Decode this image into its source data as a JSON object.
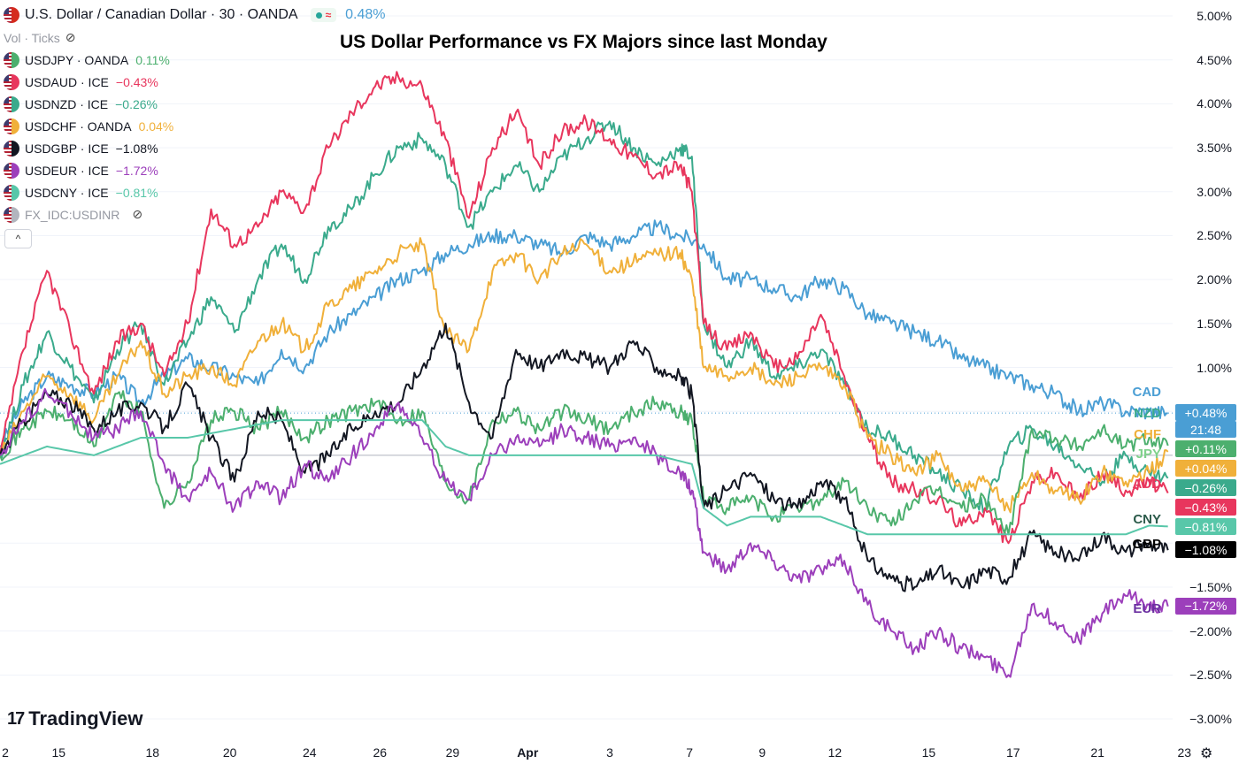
{
  "legend": {
    "main": {
      "title": "U.S. Dollar / Canadian Dollar · 30 · OANDA",
      "change": "0.48%",
      "approx": "≈",
      "color": "#4a9ed4"
    },
    "vol": "Vol · Ticks",
    "rows": [
      {
        "symbol": "USDJPY · OANDA",
        "value": "0.11%",
        "color": "#4caf6e"
      },
      {
        "symbol": "USDAUD · ICE",
        "value": "−0.43%",
        "color": "#e8365d"
      },
      {
        "symbol": "USDNZD · ICE",
        "value": "−0.26%",
        "color": "#3aaa8c"
      },
      {
        "symbol": "USDCHF · OANDA",
        "value": "0.04%",
        "color": "#f0b03a"
      },
      {
        "symbol": "USDGBP · ICE",
        "value": "−1.08%",
        "color": "#131722"
      },
      {
        "symbol": "USDEUR · ICE",
        "value": "−1.72%",
        "color": "#9c3fbb"
      },
      {
        "symbol": "USDCNY · ICE",
        "value": "−0.81%",
        "color": "#58c7a9"
      },
      {
        "symbol": "FX_IDC:USDINR",
        "value": "",
        "color": "#b2b5be"
      }
    ],
    "collapse": "^"
  },
  "brand": {
    "logo_mark": "17",
    "name": "TradingView"
  },
  "badges": [
    {
      "text": "+0.48%",
      "sub": "21:48",
      "color": "#4a9ed4",
      "pct": 0.48
    },
    {
      "text": "+0.11%",
      "color": "#4caf6e",
      "pct": 0.11
    },
    {
      "text": "+0.04%",
      "color": "#f0b03a",
      "pct": 0.04
    },
    {
      "text": "−0.26%",
      "color": "#3aaa8c",
      "pct": -0.26
    },
    {
      "text": "−0.43%",
      "color": "#e8365d",
      "pct": -0.43
    },
    {
      "text": "−0.81%",
      "color": "#58c7a9",
      "pct": -0.81
    },
    {
      "text": "−1.08%",
      "color": "#000000",
      "pct": -1.08
    },
    {
      "text": "−1.72%",
      "color": "#9c3fbb",
      "pct": -1.72
    }
  ],
  "end_labels": [
    {
      "text": "CAD",
      "color": "#4a9ed4",
      "pct": 0.62
    },
    {
      "text": "NZD",
      "color": "#3aaa8c",
      "pct": 0.38
    },
    {
      "text": "CHF",
      "color": "#f0b03a",
      "pct": 0.14
    },
    {
      "text": "JPY",
      "color": "#7fd18b",
      "pct": -0.07
    },
    {
      "text": "AUD",
      "color": "#e8365d",
      "pct": -0.42
    },
    {
      "text": "CNY",
      "color": "#2b5a4a",
      "pct": -0.83
    },
    {
      "text": "GBP",
      "color": "#000000",
      "pct": -1.11
    },
    {
      "text": "EUR",
      "color": "#6a2fa0",
      "pct": -1.75
    }
  ],
  "chart_data": {
    "type": "line",
    "title": "US Dollar Performance vs FX Majors since last Monday",
    "ylim": [
      -3.0,
      5.0
    ],
    "yticks": [
      5.0,
      4.5,
      4.0,
      3.5,
      3.0,
      2.5,
      2.0,
      1.5,
      1.0,
      -1.5,
      -2.0,
      -2.5,
      -3.0
    ],
    "ytick_labels": [
      "5.00%",
      "4.50%",
      "4.00%",
      "3.50%",
      "3.00%",
      "2.50%",
      "2.00%",
      "1.50%",
      "1.00%",
      "−1.50%",
      "−2.00%",
      "−2.50%",
      "−3.00%"
    ],
    "xlim": [
      0,
      50
    ],
    "xticks": [
      0,
      2.5,
      6.5,
      9.8,
      13.2,
      16.2,
      19.3,
      22.5,
      26,
      29.4,
      32.5,
      35.6,
      39.6,
      43.2,
      46.8,
      50.5
    ],
    "xtick_labels": [
      "2",
      "15",
      "18",
      "20",
      "24",
      "26",
      "29",
      "Apr",
      "3",
      "7",
      "9",
      "12",
      "15",
      "17",
      "21",
      "23"
    ],
    "reference_lines": [
      {
        "value": 0,
        "style": "solid"
      },
      {
        "value": 0.48,
        "style": "dotted",
        "color": "#4a9ed4"
      }
    ],
    "series": [
      {
        "name": "USDCAD",
        "color": "#4a9ed4",
        "x": [
          0,
          1,
          2,
          3,
          4,
          5,
          6,
          7,
          8,
          9,
          10,
          11,
          12,
          13,
          14,
          15,
          16,
          17,
          18,
          19,
          20,
          21,
          22,
          23,
          24,
          25,
          26,
          27,
          28,
          29,
          30,
          31,
          32,
          33,
          34,
          35,
          36,
          37,
          38,
          39,
          40,
          41,
          42,
          43,
          44,
          45,
          46,
          47,
          48,
          49,
          49.8
        ],
        "y": [
          0.1,
          0.6,
          0.9,
          0.8,
          0.7,
          0.9,
          0.6,
          0.9,
          1.1,
          1.0,
          0.9,
          0.8,
          1.2,
          1.0,
          1.4,
          1.6,
          1.8,
          2.0,
          2.1,
          2.3,
          2.4,
          2.5,
          2.5,
          2.4,
          2.3,
          2.5,
          2.4,
          2.5,
          2.6,
          2.5,
          2.4,
          2.0,
          2.0,
          1.9,
          1.8,
          2.0,
          1.9,
          1.6,
          1.5,
          1.4,
          1.3,
          1.1,
          1.0,
          0.9,
          0.8,
          0.7,
          0.5,
          0.6,
          0.5,
          0.5,
          0.48
        ]
      },
      {
        "name": "USDNZD",
        "color": "#3aaa8c",
        "x": [
          0,
          1,
          2,
          3,
          4,
          5,
          6,
          7,
          8,
          9,
          10,
          11,
          12,
          13,
          14,
          15,
          16,
          17,
          18,
          19,
          20,
          21,
          22,
          23,
          24,
          25,
          26,
          27,
          28,
          29,
          29.5,
          30,
          31,
          32,
          33,
          34,
          35,
          36,
          37,
          38,
          39,
          40,
          41,
          42,
          43,
          44,
          45,
          46,
          47,
          48,
          49,
          49.8
        ],
        "y": [
          0.0,
          0.8,
          1.4,
          1.0,
          0.6,
          1.2,
          1.5,
          0.8,
          1.3,
          1.8,
          1.4,
          2.0,
          2.4,
          2.0,
          2.6,
          2.8,
          3.2,
          3.5,
          3.6,
          3.3,
          2.6,
          3.0,
          3.3,
          3.0,
          3.4,
          3.6,
          3.8,
          3.5,
          3.3,
          3.5,
          3.4,
          1.5,
          1.0,
          1.3,
          0.9,
          1.0,
          1.2,
          0.8,
          0.3,
          0.2,
          0.0,
          -0.2,
          -0.4,
          -0.6,
          0.1,
          0.3,
          0.1,
          -0.1,
          -0.3,
          0.0,
          -0.2,
          -0.26
        ]
      },
      {
        "name": "USDAUD",
        "color": "#e8365d",
        "x": [
          0,
          1,
          2,
          3,
          4,
          5,
          6,
          7,
          8,
          9,
          10,
          11,
          12,
          13,
          14,
          15,
          16,
          17,
          18,
          19,
          20,
          21,
          22,
          23,
          24,
          25,
          26,
          27,
          28,
          29,
          29.5,
          30,
          31,
          32,
          33,
          34,
          35,
          36,
          37,
          38,
          39,
          40,
          41,
          42,
          43,
          44,
          45,
          46,
          47,
          48,
          49,
          49.8
        ],
        "y": [
          0.0,
          1.2,
          2.1,
          1.4,
          0.7,
          1.3,
          1.5,
          0.9,
          1.5,
          2.8,
          2.4,
          2.6,
          3.0,
          2.8,
          3.5,
          3.9,
          4.2,
          4.3,
          4.2,
          3.6,
          2.7,
          3.5,
          3.9,
          3.3,
          3.7,
          3.8,
          3.6,
          3.4,
          3.2,
          3.3,
          3.0,
          1.5,
          1.2,
          1.4,
          1.0,
          1.1,
          1.6,
          0.9,
          0.2,
          -0.3,
          -0.4,
          -0.5,
          -0.8,
          -0.6,
          -1.0,
          -0.3,
          -0.2,
          -0.5,
          -0.2,
          -0.4,
          -0.3,
          -0.43
        ]
      },
      {
        "name": "USDCHF",
        "color": "#f0b03a",
        "x": [
          0,
          1,
          2,
          3,
          4,
          5,
          6,
          7,
          8,
          9,
          10,
          11,
          12,
          13,
          14,
          15,
          16,
          17,
          18,
          19,
          20,
          21,
          22,
          23,
          24,
          25,
          26,
          27,
          28,
          29,
          29.5,
          30,
          31,
          32,
          33,
          34,
          35,
          36,
          37,
          38,
          39,
          40,
          41,
          42,
          43,
          44,
          45,
          46,
          47,
          48,
          49,
          49.8
        ],
        "y": [
          0.0,
          0.5,
          0.9,
          0.7,
          0.4,
          0.9,
          1.3,
          0.7,
          0.9,
          1.0,
          0.8,
          1.3,
          1.5,
          1.2,
          1.7,
          1.9,
          2.1,
          2.3,
          2.4,
          1.4,
          1.2,
          2.1,
          2.3,
          2.0,
          2.3,
          2.4,
          2.1,
          2.2,
          2.3,
          2.3,
          2.0,
          1.0,
          0.9,
          1.0,
          0.8,
          0.9,
          1.0,
          0.8,
          0.2,
          0.0,
          -0.2,
          0.0,
          -0.4,
          -0.3,
          -0.6,
          -0.2,
          -0.4,
          -0.5,
          -0.2,
          -0.3,
          -0.2,
          0.04
        ]
      },
      {
        "name": "USDJPY",
        "color": "#4caf6e",
        "x": [
          0,
          1,
          2,
          3,
          4,
          5,
          6,
          7,
          8,
          9,
          10,
          11,
          12,
          13,
          14,
          15,
          16,
          17,
          18,
          19,
          20,
          21,
          22,
          23,
          24,
          25,
          26,
          27,
          28,
          29,
          29.5,
          30,
          31,
          32,
          33,
          34,
          35,
          36,
          37,
          38,
          39,
          40,
          41,
          42,
          43,
          44,
          45,
          46,
          47,
          48,
          49,
          49.8
        ],
        "y": [
          0.0,
          0.3,
          0.5,
          0.4,
          0.1,
          0.7,
          0.5,
          -0.6,
          -0.3,
          0.4,
          0.5,
          0.3,
          0.5,
          0.2,
          0.4,
          0.5,
          0.6,
          0.4,
          0.5,
          -0.3,
          -0.5,
          0.4,
          0.5,
          0.3,
          0.5,
          0.4,
          0.3,
          0.5,
          0.6,
          0.5,
          0.4,
          -0.5,
          -0.6,
          -0.5,
          -0.7,
          -0.6,
          -0.5,
          -0.3,
          -0.6,
          -0.8,
          -0.5,
          -0.4,
          -0.6,
          -0.5,
          -0.9,
          0.3,
          0.2,
          0.1,
          0.3,
          0.1,
          0.2,
          0.11
        ]
      },
      {
        "name": "USDGBP",
        "color": "#131722",
        "x": [
          0,
          1,
          2,
          3,
          4,
          5,
          6,
          7,
          8,
          9,
          10,
          11,
          12,
          13,
          14,
          15,
          16,
          17,
          18,
          19,
          20,
          21,
          22,
          23,
          24,
          25,
          26,
          27,
          28,
          29,
          29.5,
          30,
          31,
          32,
          33,
          34,
          35,
          36,
          37,
          38,
          39,
          40,
          41,
          42,
          43,
          44,
          45,
          46,
          47,
          48,
          49,
          49.8
        ],
        "y": [
          0.0,
          0.4,
          0.7,
          0.6,
          0.3,
          0.5,
          0.6,
          0.3,
          0.8,
          0.2,
          -0.3,
          0.5,
          0.4,
          -0.2,
          0.0,
          0.3,
          0.5,
          0.6,
          1.0,
          1.5,
          0.6,
          0.2,
          1.2,
          1.0,
          1.2,
          1.1,
          1.0,
          1.3,
          1.0,
          0.9,
          0.7,
          -0.6,
          -0.4,
          -0.2,
          -0.5,
          -0.6,
          -0.3,
          -0.5,
          -1.2,
          -1.4,
          -1.5,
          -1.3,
          -1.5,
          -1.3,
          -1.4,
          -0.9,
          -1.1,
          -1.2,
          -0.9,
          -1.1,
          -1.0,
          -1.08
        ]
      },
      {
        "name": "USDEUR",
        "color": "#9c3fbb",
        "x": [
          0,
          1,
          2,
          3,
          4,
          5,
          6,
          7,
          8,
          9,
          10,
          11,
          12,
          13,
          14,
          15,
          16,
          17,
          18,
          19,
          20,
          21,
          22,
          23,
          24,
          25,
          26,
          27,
          28,
          29,
          29.5,
          30,
          31,
          32,
          33,
          34,
          35,
          36,
          37,
          38,
          39,
          40,
          41,
          42,
          43,
          44,
          45,
          46,
          47,
          48,
          49,
          49.8
        ],
        "y": [
          0.0,
          0.4,
          0.7,
          0.5,
          0.2,
          0.3,
          0.5,
          -0.1,
          -0.5,
          -0.2,
          -0.6,
          -0.3,
          -0.5,
          -0.1,
          -0.3,
          0.0,
          0.3,
          0.6,
          0.2,
          -0.3,
          -0.5,
          0.0,
          0.2,
          0.1,
          0.3,
          0.2,
          0.1,
          0.2,
          0.0,
          -0.2,
          -0.4,
          -1.1,
          -1.3,
          -1.0,
          -1.2,
          -1.4,
          -1.3,
          -1.2,
          -1.7,
          -2.0,
          -2.2,
          -2.0,
          -2.2,
          -2.3,
          -2.5,
          -1.7,
          -1.9,
          -2.1,
          -1.8,
          -1.6,
          -1.7,
          -1.72
        ]
      },
      {
        "name": "USDCNY",
        "color": "#58c7a9",
        "x": [
          0,
          2,
          4,
          6,
          8,
          10,
          12,
          14,
          16,
          18,
          19,
          20,
          22,
          24,
          26,
          28,
          29.5,
          30,
          31,
          32,
          33,
          34,
          35,
          36,
          37,
          38,
          39,
          40,
          41,
          42,
          43,
          44,
          45,
          46,
          47,
          48,
          49,
          49.8
        ],
        "y": [
          -0.1,
          0.1,
          0.0,
          0.2,
          0.2,
          0.3,
          0.4,
          0.4,
          0.4,
          0.4,
          0.1,
          0.0,
          0.0,
          0.0,
          0.0,
          0.0,
          -0.1,
          -0.6,
          -0.8,
          -0.7,
          -0.7,
          -0.7,
          -0.7,
          -0.8,
          -0.9,
          -0.9,
          -0.9,
          -0.9,
          -0.9,
          -0.9,
          -0.9,
          -0.9,
          -0.9,
          -0.9,
          -0.9,
          -0.9,
          -0.8,
          -0.81
        ]
      }
    ]
  }
}
